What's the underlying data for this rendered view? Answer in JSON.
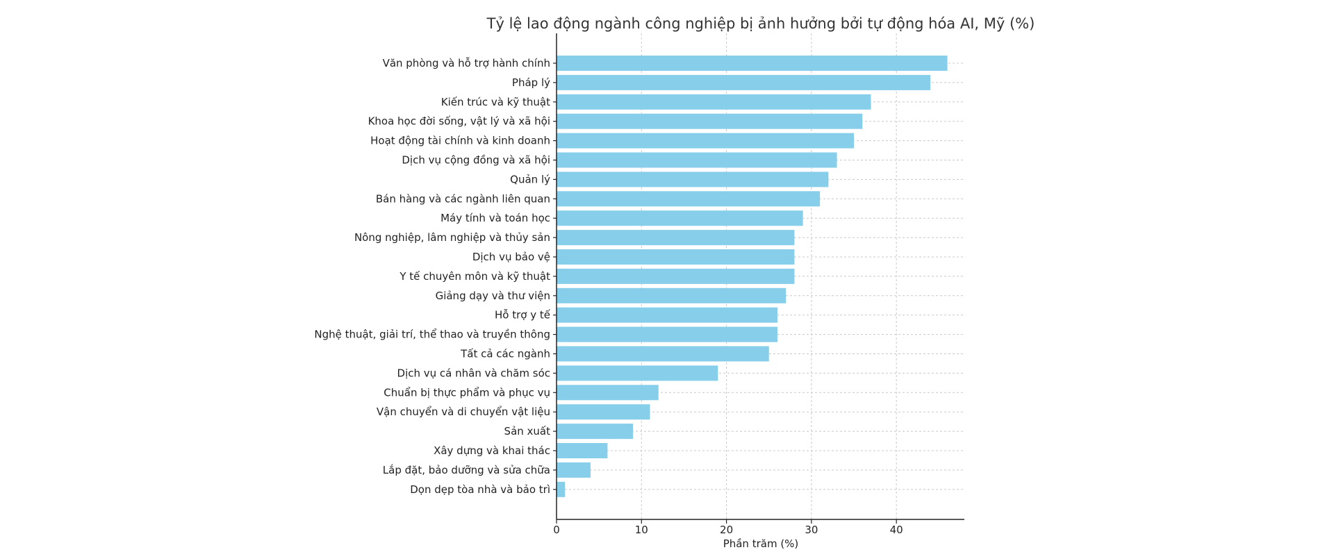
{
  "chart_data": {
    "type": "bar",
    "orientation": "horizontal",
    "title": "Tỷ lệ lao động ngành công nghiệp bị ảnh hưởng bởi tự động hóa AI, Mỹ (%)",
    "xlabel": "Phần trăm (%)",
    "ylabel": "",
    "xlim": [
      0,
      48
    ],
    "xticks": [
      0,
      10,
      20,
      30,
      40
    ],
    "grid": true,
    "bar_color": "#87ceeb",
    "categories": [
      "Văn phòng và hỗ trợ hành chính",
      "Pháp lý",
      "Kiến trúc và kỹ thuật",
      "Khoa học đời sống, vật lý và xã hội",
      "Hoạt động tài chính và kinh doanh",
      "Dịch vụ cộng đồng và xã hội",
      "Quản lý",
      "Bán hàng và các ngành liên quan",
      "Máy tính và toán học",
      "Nông nghiệp, lâm nghiệp và thủy sản",
      "Dịch vụ bảo vệ",
      "Y tế chuyên môn và kỹ thuật",
      "Giảng dạy và thư viện",
      "Hỗ trợ y tế",
      "Nghệ thuật, giải trí, thể thao và truyền thông",
      "Tất cả các ngành",
      "Dịch vụ cá nhân và chăm sóc",
      "Chuẩn bị thực phẩm và phục vụ",
      "Vận chuyển và di chuyển vật liệu",
      "Sản xuất",
      "Xây dựng và khai thác",
      "Lắp đặt, bảo dưỡng và sửa chữa",
      "Dọn dẹp tòa nhà và bảo trì"
    ],
    "values": [
      46,
      44,
      37,
      36,
      35,
      33,
      32,
      31,
      29,
      28,
      28,
      28,
      27,
      26,
      26,
      25,
      19,
      12,
      11,
      9,
      6,
      4,
      1
    ]
  }
}
